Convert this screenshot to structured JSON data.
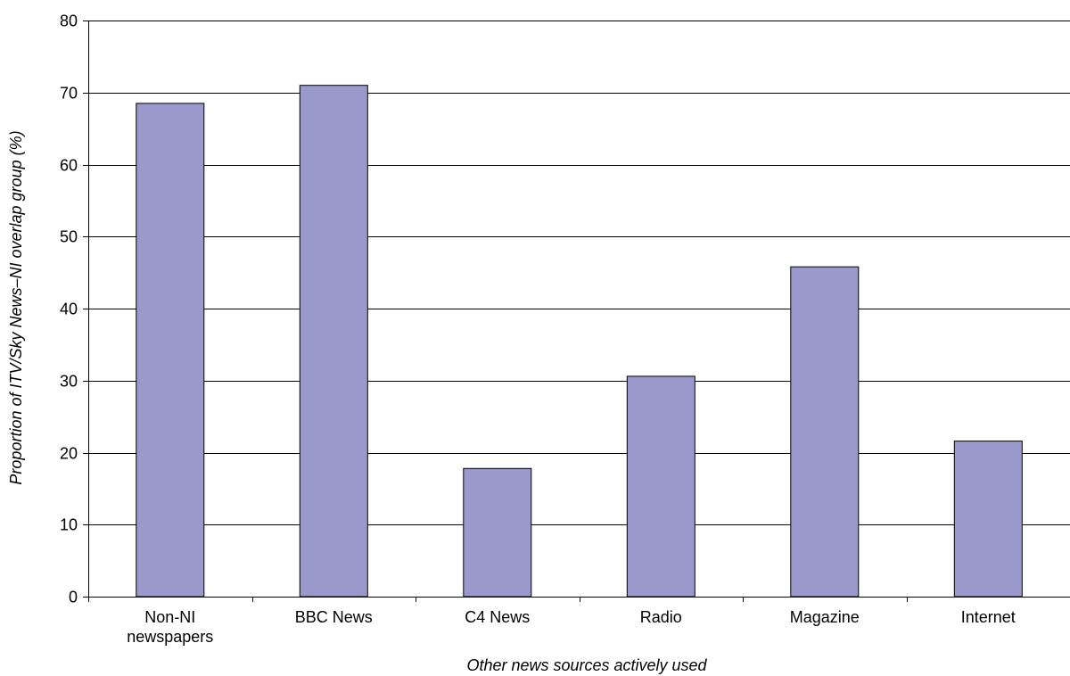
{
  "chart_data": {
    "type": "bar",
    "title": "",
    "xlabel": "Other news sources actively used",
    "ylabel": "Proportion of ITV/Sky News–NI overlap group (%)",
    "categories": [
      [
        "Non-NI",
        "newspapers"
      ],
      [
        "BBC News"
      ],
      [
        "C4 News"
      ],
      [
        "Radio"
      ],
      [
        "Magazine"
      ],
      [
        "Internet"
      ]
    ],
    "values": [
      68.5,
      71,
      17.8,
      30.6,
      45.8,
      21.6
    ],
    "ylim": [
      0,
      80
    ],
    "yticks": [
      0,
      10,
      20,
      30,
      40,
      50,
      60,
      70,
      80
    ],
    "grid": true,
    "legend": "none",
    "colors": {
      "bar": "#9999cc",
      "bar_border": "#000000",
      "grid": "#000000"
    }
  }
}
